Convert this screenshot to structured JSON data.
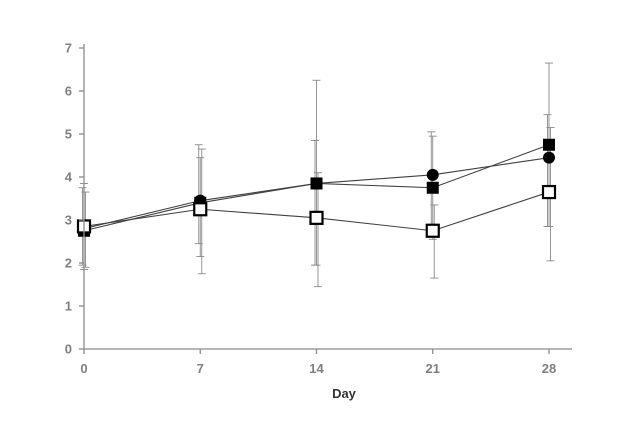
{
  "chart_data": {
    "type": "line",
    "x": [
      0,
      7,
      14,
      21,
      28
    ],
    "xticks": [
      "0",
      "7",
      "14",
      "21",
      "28"
    ],
    "yticks": [
      "0",
      "1",
      "2",
      "3",
      "4",
      "5",
      "6",
      "7"
    ],
    "xlabel": "Day",
    "ylabel": "",
    "xlim": [
      0,
      28
    ],
    "ylim": [
      0,
      7
    ],
    "grid": false,
    "series": [
      {
        "marker": "filled-circle",
        "values": [
          2.8,
          3.45,
          3.85,
          4.05,
          4.45
        ],
        "error_low": [
          1.95,
          2.45,
          1.95,
          2.6,
          2.85
        ],
        "error_high": [
          3.75,
          4.75,
          4.85,
          5.05,
          5.45
        ]
      },
      {
        "marker": "filled-square",
        "values": [
          2.75,
          3.4,
          3.85,
          3.75,
          4.75
        ],
        "error_low": [
          1.85,
          2.15,
          1.95,
          2.55,
          2.85
        ],
        "error_high": [
          3.85,
          4.45,
          6.25,
          4.95,
          6.65
        ]
      },
      {
        "marker": "open-square",
        "values": [
          2.85,
          3.25,
          3.05,
          2.75,
          3.65
        ],
        "error_low": [
          1.9,
          1.75,
          1.45,
          1.65,
          2.05
        ],
        "error_high": [
          3.65,
          4.65,
          4.1,
          3.35,
          5.15
        ]
      }
    ]
  }
}
